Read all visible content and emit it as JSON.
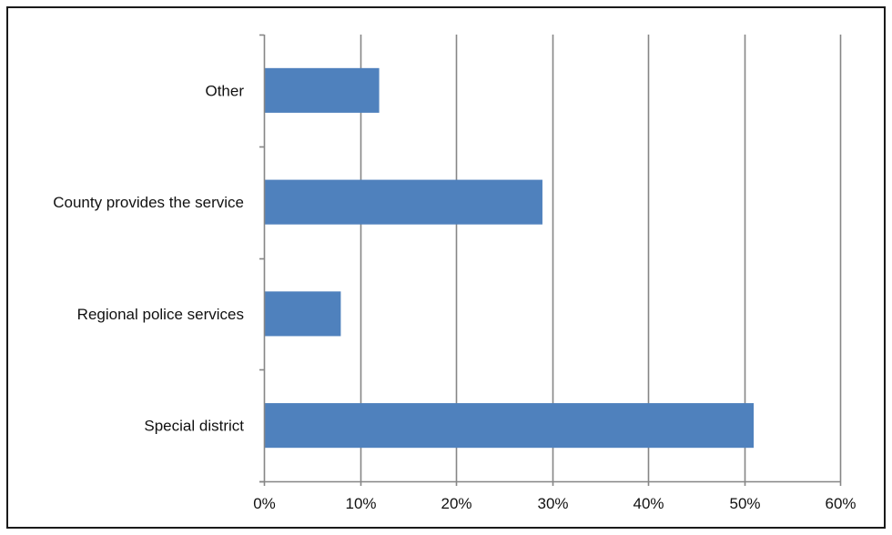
{
  "chart_data": {
    "type": "bar",
    "orientation": "horizontal",
    "categories": [
      "Special district",
      "Regional police services",
      "County provides the service",
      "Other"
    ],
    "values": [
      51,
      8,
      29,
      12
    ],
    "value_unit": "%",
    "xlim": [
      0,
      60
    ],
    "xticks": [
      0,
      10,
      20,
      30,
      40,
      50,
      60
    ],
    "xtick_labels": [
      "0%",
      "10%",
      "20%",
      "30%",
      "40%",
      "50%",
      "60%"
    ],
    "grid": "vertical",
    "legend": "none",
    "bar_color": "#4f81bd",
    "gridline_color": "#868686",
    "title": "",
    "xlabel": "",
    "ylabel": ""
  }
}
